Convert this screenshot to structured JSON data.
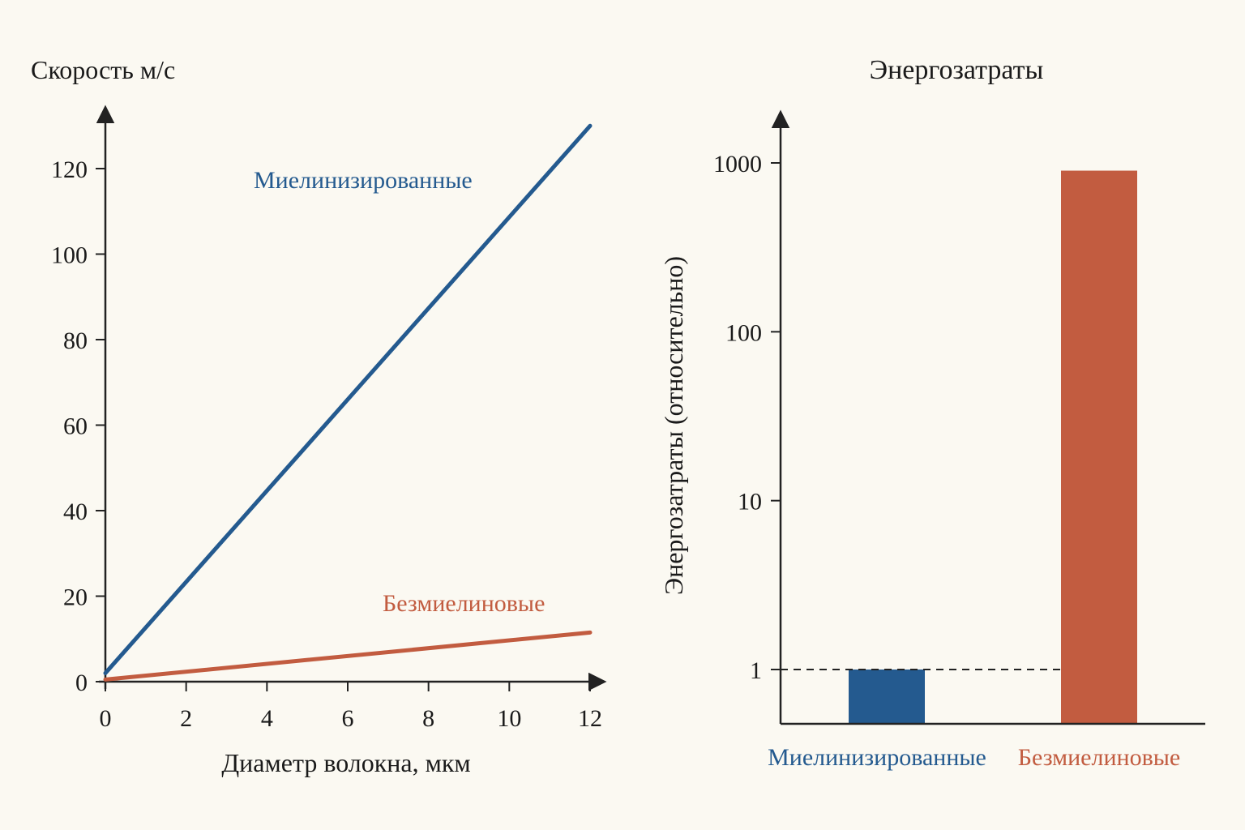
{
  "colors": {
    "myelinated": "#245a8f",
    "unmyelinated": "#c25c40",
    "axis": "#222222",
    "background": "#fbf9f2"
  },
  "chart_data": [
    {
      "type": "line",
      "title": "",
      "ylabel": "Скорость м/с",
      "xlabel": "Диаметр волокна, мкм",
      "xlim": [
        0,
        12
      ],
      "ylim": [
        0,
        130
      ],
      "xticks": [
        "0",
        "2",
        "4",
        "6",
        "8",
        "10",
        "12"
      ],
      "yticks": [
        "0",
        "20",
        "40",
        "60",
        "80",
        "100",
        "120"
      ],
      "series": [
        {
          "name": "Миелинизированные",
          "color": "#245a8f",
          "x": [
            0,
            12
          ],
          "y": [
            2,
            130
          ]
        },
        {
          "name": "Безмиелиновые",
          "color": "#c25c40",
          "x": [
            0,
            12
          ],
          "y": [
            0.5,
            11.5
          ]
        }
      ],
      "grid": false
    },
    {
      "type": "bar",
      "title": "Энергозатраты",
      "ylabel": "Энергозатраты (относительно)",
      "yscale": "log",
      "yticks": [
        "1",
        "10",
        "100",
        "1000"
      ],
      "categories": [
        "Миелинизированные",
        "Безмиелиновые"
      ],
      "values": [
        1,
        900
      ],
      "colors": [
        "#245a8f",
        "#c25c40"
      ],
      "reference_line": {
        "value": 1,
        "style": "dashed"
      },
      "grid": false
    }
  ]
}
